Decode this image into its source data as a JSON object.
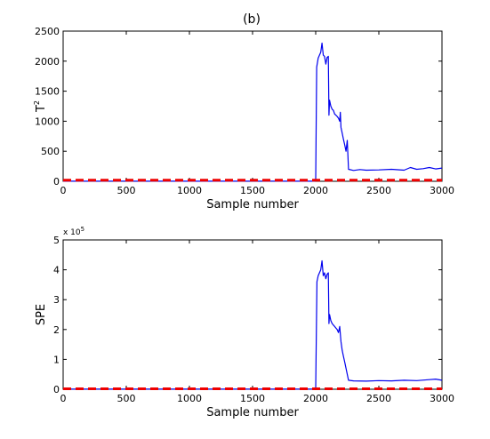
{
  "figure_label": "(b)",
  "chart_data": [
    {
      "type": "line",
      "title": "",
      "xlabel": "Sample number",
      "ylabel": "T",
      "ylabel_superscript": "2",
      "xlim": [
        0,
        3000
      ],
      "ylim": [
        0,
        2500
      ],
      "xticks": [
        0,
        500,
        1000,
        1500,
        2000,
        2500,
        3000
      ],
      "yticks": [
        0,
        500,
        1000,
        1500,
        2000,
        2500
      ],
      "ytick_labels": [
        "0",
        "500",
        "1000",
        "1500",
        "2000",
        "2500"
      ],
      "exponent_label": "",
      "grid": false,
      "series": [
        {
          "style": "solid",
          "color": "#0000ee",
          "points": [
            [
              0,
              2
            ],
            [
              500,
              3
            ],
            [
              1000,
              2
            ],
            [
              1500,
              3
            ],
            [
              1990,
              2
            ],
            [
              2000,
              10
            ],
            [
              2008,
              1900
            ],
            [
              2020,
              2050
            ],
            [
              2040,
              2150
            ],
            [
              2050,
              2300
            ],
            [
              2060,
              2100
            ],
            [
              2070,
              2080
            ],
            [
              2080,
              1950
            ],
            [
              2090,
              2060
            ],
            [
              2100,
              2080
            ],
            [
              2105,
              1100
            ],
            [
              2110,
              1350
            ],
            [
              2120,
              1250
            ],
            [
              2130,
              1200
            ],
            [
              2140,
              1180
            ],
            [
              2150,
              1120
            ],
            [
              2160,
              1100
            ],
            [
              2170,
              1080
            ],
            [
              2180,
              1050
            ],
            [
              2190,
              1000
            ],
            [
              2195,
              1150
            ],
            [
              2200,
              900
            ],
            [
              2210,
              800
            ],
            [
              2220,
              700
            ],
            [
              2230,
              600
            ],
            [
              2240,
              500
            ],
            [
              2250,
              680
            ],
            [
              2260,
              200
            ],
            [
              2300,
              180
            ],
            [
              2350,
              195
            ],
            [
              2400,
              185
            ],
            [
              2500,
              190
            ],
            [
              2600,
              200
            ],
            [
              2700,
              185
            ],
            [
              2750,
              230
            ],
            [
              2800,
              200
            ],
            [
              2850,
              210
            ],
            [
              2900,
              230
            ],
            [
              2950,
              205
            ],
            [
              3000,
              220
            ]
          ]
        },
        {
          "style": "dashed",
          "color": "#ee0000",
          "points": [
            [
              0,
              18
            ],
            [
              3000,
              18
            ]
          ]
        }
      ]
    },
    {
      "type": "line",
      "title": "",
      "xlabel": "Sample number",
      "ylabel": "SPE",
      "ylabel_superscript": "",
      "xlim": [
        0,
        3000
      ],
      "ylim": [
        0,
        500000
      ],
      "xticks": [
        0,
        500,
        1000,
        1500,
        2000,
        2500,
        3000
      ],
      "yticks": [
        0,
        100000,
        200000,
        300000,
        400000,
        500000
      ],
      "ytick_labels": [
        "0",
        "1",
        "2",
        "3",
        "4",
        "5"
      ],
      "exponent_label": "x 10",
      "exponent_power": "5",
      "grid": false,
      "series": [
        {
          "style": "solid",
          "color": "#0000ee",
          "points": [
            [
              0,
              500
            ],
            [
              500,
              600
            ],
            [
              1000,
              500
            ],
            [
              1500,
              600
            ],
            [
              1990,
              500
            ],
            [
              2000,
              2000
            ],
            [
              2010,
              360000
            ],
            [
              2020,
              380000
            ],
            [
              2040,
              400000
            ],
            [
              2050,
              430000
            ],
            [
              2060,
              380000
            ],
            [
              2070,
              390000
            ],
            [
              2080,
              370000
            ],
            [
              2090,
              385000
            ],
            [
              2100,
              390000
            ],
            [
              2105,
              220000
            ],
            [
              2110,
              250000
            ],
            [
              2120,
              230000
            ],
            [
              2130,
              220000
            ],
            [
              2140,
              215000
            ],
            [
              2150,
              210000
            ],
            [
              2160,
              205000
            ],
            [
              2170,
              200000
            ],
            [
              2180,
              190000
            ],
            [
              2190,
              210000
            ],
            [
              2200,
              160000
            ],
            [
              2210,
              130000
            ],
            [
              2220,
              110000
            ],
            [
              2230,
              90000
            ],
            [
              2240,
              70000
            ],
            [
              2250,
              50000
            ],
            [
              2260,
              30000
            ],
            [
              2300,
              28000
            ],
            [
              2400,
              27000
            ],
            [
              2500,
              29000
            ],
            [
              2600,
              28000
            ],
            [
              2700,
              30000
            ],
            [
              2800,
              29000
            ],
            [
              2900,
              32000
            ],
            [
              2950,
              34000
            ],
            [
              3000,
              30000
            ]
          ]
        },
        {
          "style": "dashed",
          "color": "#ee0000",
          "points": [
            [
              0,
              1500
            ],
            [
              3000,
              1500
            ]
          ]
        }
      ]
    }
  ]
}
